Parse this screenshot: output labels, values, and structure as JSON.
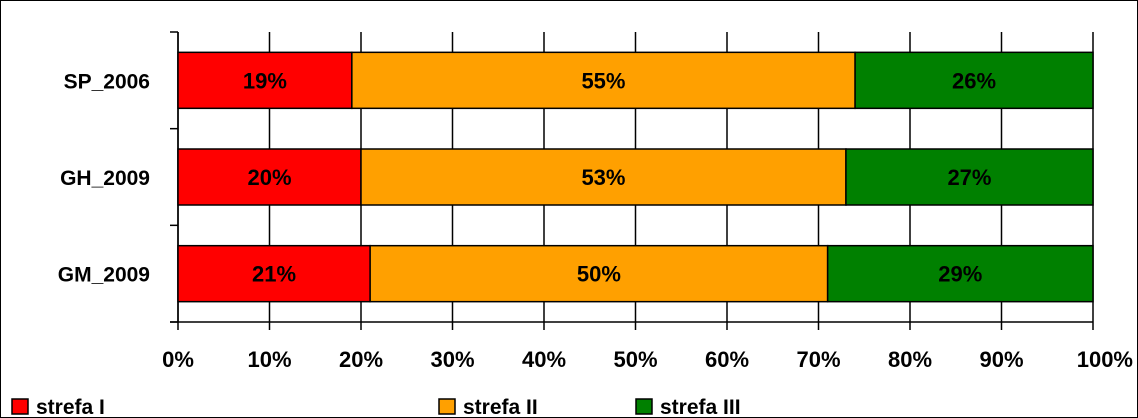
{
  "chart_data": {
    "type": "bar",
    "orientation": "horizontal",
    "stacked": "percent",
    "categories": [
      "SP_2006",
      "GH_2009",
      "GM_2009"
    ],
    "series": [
      {
        "name": "strefa I",
        "color": "#ff0000",
        "values": [
          19,
          20,
          21
        ],
        "labels": [
          "19%",
          "20%",
          "21%"
        ]
      },
      {
        "name": "strefa II",
        "color": "#ffa000",
        "values": [
          55,
          53,
          50
        ],
        "labels": [
          "55%",
          "53%",
          "50%"
        ]
      },
      {
        "name": "strefa III",
        "color": "#008000",
        "values": [
          26,
          27,
          29
        ],
        "labels": [
          "26%",
          "27%",
          "29%"
        ]
      }
    ],
    "x_ticks": [
      "0%",
      "10%",
      "20%",
      "30%",
      "40%",
      "50%",
      "60%",
      "70%",
      "80%",
      "90%",
      "100%"
    ],
    "xlim": [
      0,
      100
    ],
    "grid": true,
    "legend_position": "bottom",
    "title": "",
    "xlabel": "",
    "ylabel": ""
  }
}
